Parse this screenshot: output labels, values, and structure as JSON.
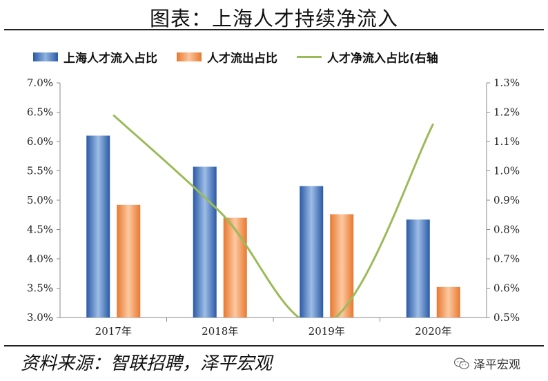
{
  "header": {
    "title": "图表：上海人才持续净流入"
  },
  "footer": {
    "source": "资料来源：智联招聘，泽平宏观",
    "brand": "泽平宏观"
  },
  "colors": {
    "inflow": "#3d6eb5",
    "outflow": "#f39a5a",
    "net": "#9bbb59"
  },
  "chart_data": {
    "type": "bar",
    "categories": [
      "2017年",
      "2018年",
      "2019年",
      "2020年"
    ],
    "series": [
      {
        "name": "上海人才流入占比",
        "type": "bar",
        "axis": "left",
        "values": [
          6.1,
          5.57,
          5.24,
          4.67
        ]
      },
      {
        "name": "人才流出占比",
        "type": "bar",
        "axis": "left",
        "values": [
          4.92,
          4.7,
          4.76,
          3.52
        ]
      },
      {
        "name": "人才净流入占比(右轴",
        "type": "line",
        "axis": "right",
        "values": [
          1.19,
          0.86,
          0.48,
          1.16
        ]
      }
    ],
    "y_left": {
      "min": 3.0,
      "max": 7.0,
      "step": 0.5,
      "ticks": [
        "3.0%",
        "3.5%",
        "4.0%",
        "4.5%",
        "5.0%",
        "5.5%",
        "6.0%",
        "6.5%",
        "7.0%"
      ]
    },
    "y_right": {
      "min": 0.5,
      "max": 1.3,
      "step": 0.1,
      "ticks": [
        "0.5%",
        "0.6%",
        "0.7%",
        "0.8%",
        "0.9%",
        "1.0%",
        "1.1%",
        "1.2%",
        "1.3%"
      ]
    },
    "legend_position": "top",
    "grid": false
  }
}
